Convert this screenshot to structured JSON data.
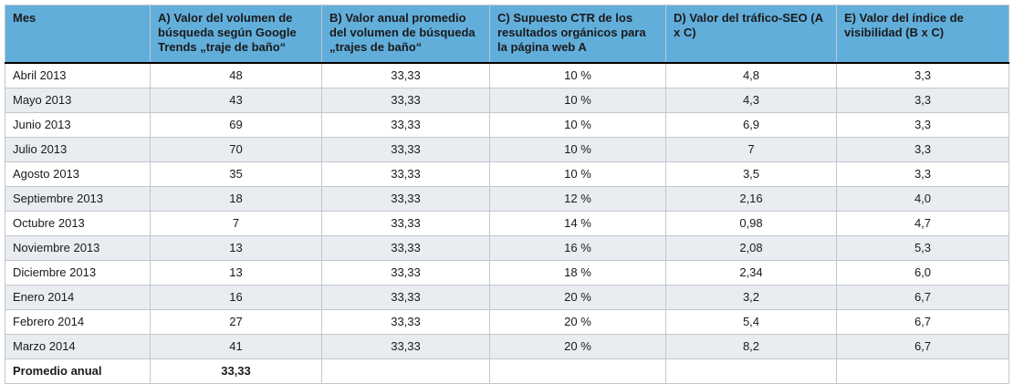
{
  "chart_data": {
    "type": "table",
    "title": "",
    "columns": [
      {
        "key": "mes",
        "label": "Mes"
      },
      {
        "key": "a",
        "label": "A) Valor del volumen de búsqueda según Google Trends „traje de baño“"
      },
      {
        "key": "b",
        "label": "B) Valor anual promedio del volumen de búsqueda „trajes de baño“"
      },
      {
        "key": "c",
        "label": "C) Supuesto CTR de los resultados orgánicos para la página web A"
      },
      {
        "key": "d",
        "label": "D) Valor del tráfico-SEO (A x C)"
      },
      {
        "key": "e",
        "label": "E) Valor del índice de visibilidad (B x C)"
      }
    ],
    "rows": [
      {
        "mes": "Abril 2013",
        "a": "48",
        "b": "33,33",
        "c": "10 %",
        "d": "4,8",
        "e": "3,3"
      },
      {
        "mes": "Mayo 2013",
        "a": "43",
        "b": "33,33",
        "c": "10 %",
        "d": "4,3",
        "e": "3,3"
      },
      {
        "mes": "Junio 2013",
        "a": "69",
        "b": "33,33",
        "c": "10 %",
        "d": "6,9",
        "e": "3,3"
      },
      {
        "mes": "Julio 2013",
        "a": "70",
        "b": "33,33",
        "c": "10 %",
        "d": "7",
        "e": "3,3"
      },
      {
        "mes": "Agosto 2013",
        "a": "35",
        "b": "33,33",
        "c": "10 %",
        "d": "3,5",
        "e": "3,3"
      },
      {
        "mes": "Septiembre 2013",
        "a": "18",
        "b": "33,33",
        "c": "12 %",
        "d": "2,16",
        "e": "4,0"
      },
      {
        "mes": "Octubre 2013",
        "a": "7",
        "b": "33,33",
        "c": "14 %",
        "d": "0,98",
        "e": "4,7"
      },
      {
        "mes": "Noviembre 2013",
        "a": "13",
        "b": "33,33",
        "c": "16 %",
        "d": "2,08",
        "e": "5,3"
      },
      {
        "mes": "Diciembre 2013",
        "a": "13",
        "b": "33,33",
        "c": "18 %",
        "d": "2,34",
        "e": "6,0"
      },
      {
        "mes": "Enero 2014",
        "a": "16",
        "b": "33,33",
        "c": "20 %",
        "d": "3,2",
        "e": "6,7"
      },
      {
        "mes": "Febrero 2014",
        "a": "27",
        "b": "33,33",
        "c": "20 %",
        "d": "5,4",
        "e": "6,7"
      },
      {
        "mes": "Marzo 2014",
        "a": "41",
        "b": "33,33",
        "c": "20 %",
        "d": "8,2",
        "e": "6,7"
      }
    ],
    "footer_row": {
      "mes": "Promedio anual",
      "a": "33,33",
      "b": "",
      "c": "",
      "d": "",
      "e": ""
    }
  },
  "colors": {
    "header_bg": "#62AEDB",
    "alt_row_bg": "#E9EDF2",
    "border": "#C3C7CB",
    "header_bottom_border": "#000000",
    "text": "#1A1A1A"
  }
}
